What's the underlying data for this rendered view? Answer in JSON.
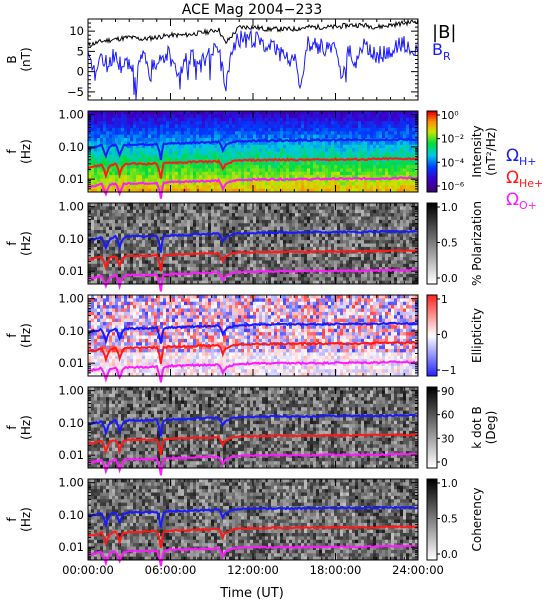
{
  "chart_data": {
    "title": "ACE Mag 2004−233",
    "xlabel": "Time (UT)",
    "x_ticks": [
      "00:00:00",
      "06:00:00",
      "12:00:00",
      "18:00:00",
      "24:00:00"
    ],
    "x_range_hours": [
      0,
      24
    ],
    "panels": [
      {
        "type": "line",
        "ylabel": "B",
        "yunit": "(nT)",
        "ylim": [
          -7,
          13
        ],
        "y_ticks": [
          "10",
          "5",
          "0",
          "−5"
        ],
        "series": [
          {
            "name": "|B|",
            "color": "#000000",
            "x": [
              0,
              1,
              2,
              3,
              4,
              5,
              6,
              7,
              8,
              9,
              9.5,
              10,
              11,
              12,
              13,
              14,
              15,
              16,
              17,
              18,
              19,
              20,
              21,
              22,
              23,
              24
            ],
            "y": [
              6.5,
              7.5,
              8,
              8.5,
              8,
              8.5,
              9,
              9,
              9.5,
              10,
              10.5,
              7,
              11,
              11,
              10.5,
              10.5,
              10.5,
              11,
              11,
              11,
              11.5,
              11.5,
              11,
              11.5,
              12,
              12.5
            ]
          },
          {
            "name": "B",
            "subscript": "R",
            "color": "#1a1aff",
            "x": [
              0,
              0.5,
              1,
              1.5,
              2,
              2.5,
              3,
              3.5,
              4,
              4.5,
              5,
              5.5,
              6,
              6.5,
              7,
              7.5,
              8,
              8.5,
              9,
              9.5,
              10,
              10.5,
              11,
              11.5,
              12,
              13,
              14,
              15,
              15.5,
              16,
              17,
              18,
              18.5,
              19,
              19.5,
              20,
              21,
              22,
              23,
              23.5,
              24
            ],
            "y": [
              3,
              -1,
              4,
              1,
              5,
              0,
              3,
              -2,
              4,
              0,
              3,
              2,
              6,
              -2,
              2,
              4,
              1,
              3,
              5,
              6,
              -5,
              7,
              8,
              8,
              8,
              7,
              4,
              3,
              -3,
              7,
              6,
              5,
              -3,
              6,
              2,
              7,
              4,
              5,
              7,
              6,
              6
            ]
          }
        ]
      },
      {
        "type": "heatmap",
        "ylabel": "f",
        "yunit": "(Hz)",
        "y_ticks": [
          "1.00",
          "0.10",
          "0.01"
        ],
        "colorbar": {
          "label": "Intensity",
          "unit": "(nT²/Hz)",
          "ticks": [
            "10⁰",
            "10⁻²",
            "10⁻⁴",
            "10⁻⁶"
          ],
          "scale": "rainbow"
        },
        "legend": [
          {
            "base": "Ω",
            "sub": "H+",
            "color": "#1a1aff"
          },
          {
            "base": "Ω",
            "sub": "He+",
            "color": "#ff1a1a"
          },
          {
            "base": "Ω",
            "sub": "O+",
            "color": "#ff1aff"
          }
        ]
      },
      {
        "type": "heatmap",
        "ylabel": "f",
        "yunit": "(Hz)",
        "y_ticks": [
          "1.00",
          "0.10",
          "0.01"
        ],
        "colorbar": {
          "label": "% Polarization",
          "unit": "",
          "ticks": [
            "1.0",
            "0.5",
            "0.0"
          ],
          "scale": "gray"
        }
      },
      {
        "type": "heatmap",
        "ylabel": "f",
        "yunit": "(Hz)",
        "y_ticks": [
          "1.00",
          "0.10",
          "0.01"
        ],
        "colorbar": {
          "label": "Ellipticity",
          "unit": "",
          "ticks": [
            "1",
            "0",
            "−1"
          ],
          "scale": "bwr"
        }
      },
      {
        "type": "heatmap",
        "ylabel": "f",
        "yunit": "(Hz)",
        "y_ticks": [
          "1.00",
          "0.10",
          "0.01"
        ],
        "colorbar": {
          "label": "k dot B",
          "unit": "(Deg)",
          "ticks": [
            "90",
            "60",
            "30",
            "0"
          ],
          "scale": "gray"
        }
      },
      {
        "type": "heatmap",
        "ylabel": "f",
        "yunit": "(Hz)",
        "y_ticks": [
          "1.00",
          "0.10",
          "0.01"
        ],
        "colorbar": {
          "label": "Coherency",
          "unit": "",
          "ticks": [
            "1.0",
            "0.5",
            "0.0"
          ],
          "scale": "gray"
        }
      }
    ],
    "gyrofrequency_curves": {
      "x": [
        0,
        0.5,
        1,
        1.3,
        1.6,
        2,
        2.3,
        2.6,
        3,
        3.5,
        4,
        4.5,
        5,
        5.3,
        5.5,
        6,
        7,
        8,
        9,
        9.5,
        9.8,
        10,
        10.5,
        11,
        12,
        14,
        16,
        18,
        20,
        22,
        24
      ],
      "H+": [
        0.09,
        0.1,
        0.11,
        0.05,
        0.1,
        0.12,
        0.055,
        0.11,
        0.12,
        0.12,
        0.12,
        0.12,
        0.125,
        0.04,
        0.12,
        0.13,
        0.13,
        0.14,
        0.14,
        0.145,
        0.08,
        0.11,
        0.14,
        0.15,
        0.155,
        0.16,
        0.16,
        0.165,
        0.165,
        0.17,
        0.17
      ],
      "He+": [
        0.023,
        0.025,
        0.028,
        0.013,
        0.026,
        0.03,
        0.014,
        0.028,
        0.03,
        0.03,
        0.03,
        0.03,
        0.031,
        0.01,
        0.03,
        0.033,
        0.033,
        0.035,
        0.035,
        0.036,
        0.02,
        0.028,
        0.035,
        0.038,
        0.039,
        0.04,
        0.04,
        0.041,
        0.041,
        0.043,
        0.043
      ],
      "O+": [
        0.0058,
        0.0063,
        0.007,
        0.0033,
        0.0065,
        0.0075,
        0.0035,
        0.007,
        0.0075,
        0.0075,
        0.0075,
        0.0075,
        0.0078,
        0.0025,
        0.0075,
        0.0083,
        0.0083,
        0.0088,
        0.0088,
        0.009,
        0.005,
        0.007,
        0.0088,
        0.0095,
        0.0098,
        0.01,
        0.01,
        0.0103,
        0.0103,
        0.0108,
        0.0108
      ]
    }
  }
}
